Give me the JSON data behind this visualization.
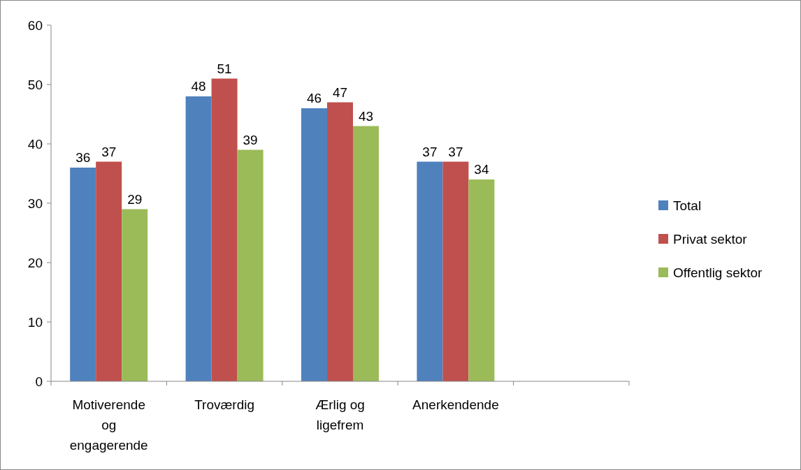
{
  "chart_data": {
    "type": "bar",
    "categories": [
      "Motiverende og engagerende",
      "Troværdig",
      "Ærlig og ligefrem",
      "Anerkendende",
      null
    ],
    "series": [
      {
        "name": "Total",
        "color": "#4f81bd",
        "values": [
          36,
          48,
          46,
          37,
          null
        ]
      },
      {
        "name": "Privat sektor",
        "color": "#c0504d",
        "values": [
          37,
          51,
          47,
          37,
          null
        ]
      },
      {
        "name": "Offentlig sektor",
        "color": "#9bbb59",
        "values": [
          29,
          39,
          43,
          34,
          null
        ]
      }
    ],
    "ylim": [
      0,
      60
    ],
    "yticks": [
      0,
      10,
      20,
      30,
      40,
      50,
      60
    ],
    "grid": false,
    "legend": "right",
    "data_labels": true
  }
}
